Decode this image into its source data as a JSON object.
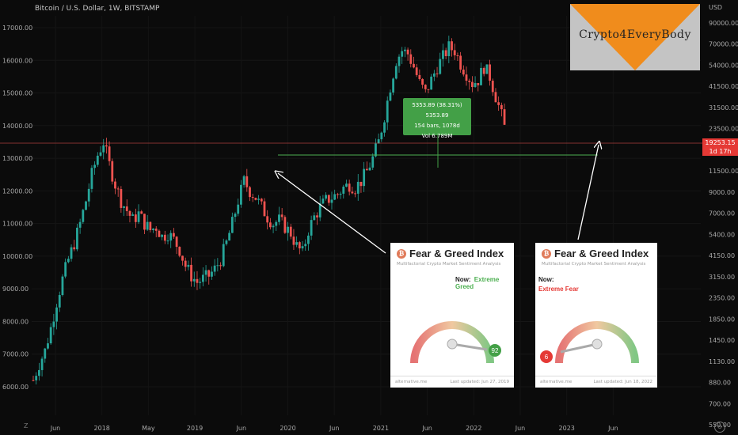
{
  "header": {
    "symbol_line": "Bitcoin / U.S. Dollar, 1W, BITSTAMP"
  },
  "logo": {
    "text": "Crypto4EveryBody"
  },
  "measure_tool": {
    "line1": "5353.89 (38.31%) 5353.89",
    "line2": "154 bars, 1078d",
    "line3": "Vol 6.789M"
  },
  "price_tag": {
    "price": "19253.15",
    "countdown": "1d 17h"
  },
  "z_label": "Z",
  "colors": {
    "up_candle": "#26a69a",
    "down_candle": "#ef5350",
    "measure_green": "#43a047",
    "price_red": "#e53935",
    "greed_green": "#4caf50",
    "fear_red": "#e53935"
  },
  "fear_greed_cards": [
    {
      "title": "Fear & Greed Index",
      "subtitle": "Multifactorial Crypto Market Sentiment Analysis",
      "now_label": "Now:",
      "state": "Extreme Greed",
      "value": "92",
      "footer_left": "alternative.me",
      "footer_right": "Last updated: Jun 27, 2019"
    },
    {
      "title": "Fear & Greed Index",
      "subtitle": "Multifactorial Crypto Market Sentiment Analysis",
      "now_label": "Now:",
      "state": "Extreme Fear",
      "value": "6",
      "footer_left": "alternative.me",
      "footer_right": "Last updated: Jun 18, 2022"
    }
  ],
  "chart_data": {
    "type": "candlestick",
    "y_left": {
      "ticks": [
        "17000.00",
        "16000.00",
        "15000.00",
        "14000.00",
        "13000.00",
        "12000.00",
        "11000.00",
        "10000.00",
        "9000.00",
        "8000.00",
        "7000.00",
        "6000.00"
      ]
    },
    "y_right": {
      "unit_label": "USD",
      "scale": "log",
      "ticks": [
        "90000.00",
        "70000.00",
        "54000.00",
        "41500.00",
        "31500.00",
        "23500.00",
        "14500.00",
        "11500.00",
        "9000.00",
        "7000.00",
        "5400.00",
        "4150.00",
        "3150.00",
        "2350.00",
        "1850.00",
        "1450.00",
        "1130.00",
        "880.00",
        "700.00",
        "550.00"
      ]
    },
    "x_ticks": [
      "Jun",
      "2018",
      "May",
      "2019",
      "Jun",
      "2020",
      "Jun",
      "2021",
      "Jun",
      "2022",
      "Jun",
      "2023",
      "Jun"
    ],
    "horizontal_lines": [
      {
        "name": "current-price-line",
        "color": "#ef5350"
      },
      {
        "name": "support-line",
        "color": "#4caf50"
      }
    ],
    "series_close_points": [
      [
        0,
        6200
      ],
      [
        2,
        6700
      ],
      [
        4,
        7100
      ],
      [
        6,
        7800
      ],
      [
        8,
        8600
      ],
      [
        10,
        9300
      ],
      [
        12,
        9900
      ],
      [
        14,
        10400
      ],
      [
        16,
        11000
      ],
      [
        18,
        11700
      ],
      [
        20,
        12500
      ],
      [
        22,
        13100
      ],
      [
        24,
        13500
      ],
      [
        26,
        12800
      ],
      [
        28,
        12200
      ],
      [
        30,
        11700
      ],
      [
        32,
        11400
      ],
      [
        34,
        11100
      ],
      [
        36,
        11300
      ],
      [
        38,
        11000
      ],
      [
        40,
        10800
      ],
      [
        42,
        10900
      ],
      [
        44,
        10600
      ],
      [
        46,
        10700
      ],
      [
        48,
        10500
      ],
      [
        50,
        10200
      ],
      [
        52,
        9700
      ],
      [
        54,
        9400
      ],
      [
        56,
        9200
      ],
      [
        58,
        9300
      ],
      [
        60,
        9400
      ],
      [
        62,
        9600
      ],
      [
        64,
        9900
      ],
      [
        66,
        10400
      ],
      [
        68,
        11000
      ],
      [
        70,
        11700
      ],
      [
        72,
        12300
      ],
      [
        74,
        12000
      ],
      [
        76,
        11800
      ],
      [
        78,
        11500
      ],
      [
        80,
        11200
      ],
      [
        82,
        11000
      ],
      [
        84,
        11100
      ],
      [
        86,
        10900
      ],
      [
        88,
        10700
      ],
      [
        90,
        10300
      ],
      [
        92,
        10100
      ],
      [
        94,
        10800
      ],
      [
        96,
        11200
      ],
      [
        98,
        11500
      ],
      [
        100,
        11700
      ],
      [
        102,
        11800
      ],
      [
        104,
        11900
      ],
      [
        106,
        12100
      ],
      [
        108,
        12200
      ],
      [
        110,
        12100
      ],
      [
        112,
        12300
      ],
      [
        114,
        12600
      ],
      [
        116,
        13000
      ],
      [
        118,
        13500
      ],
      [
        120,
        14300
      ],
      [
        122,
        15200
      ],
      [
        124,
        16000
      ],
      [
        126,
        16300
      ],
      [
        128,
        16200
      ],
      [
        130,
        15800
      ],
      [
        132,
        15300
      ],
      [
        134,
        15000
      ],
      [
        136,
        15400
      ],
      [
        138,
        15800
      ],
      [
        140,
        16100
      ],
      [
        142,
        16400
      ],
      [
        144,
        16300
      ],
      [
        146,
        15900
      ],
      [
        148,
        15600
      ],
      [
        150,
        15300
      ],
      [
        152,
        15400
      ],
      [
        154,
        15800
      ],
      [
        156,
        15500
      ],
      [
        158,
        14900
      ],
      [
        160,
        14300
      ],
      [
        162,
        13600
      ]
    ]
  }
}
